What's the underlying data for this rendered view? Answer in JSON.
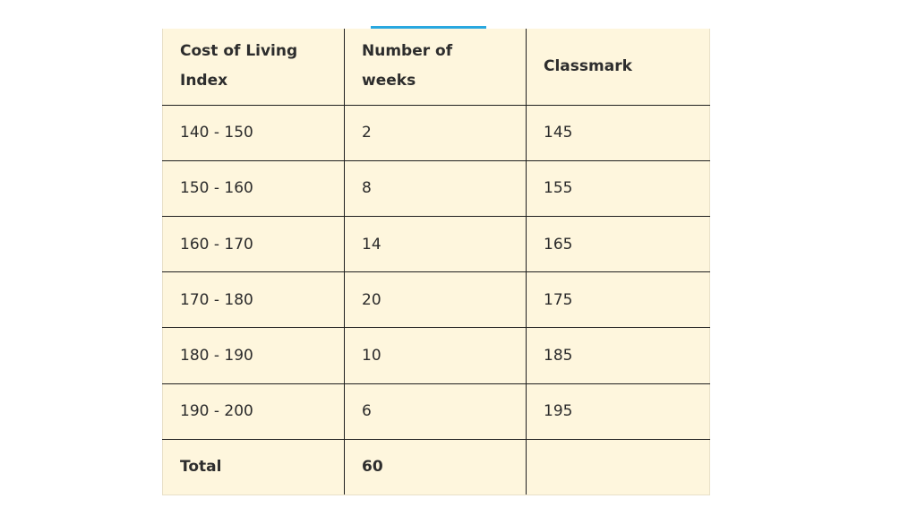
{
  "table": {
    "headers": {
      "col1_line1": "Cost of Living",
      "col1_line2": "Index",
      "col2_line1": "Number of",
      "col2_line2": "weeks",
      "col3": "Classmark"
    },
    "rows": [
      {
        "range": "140 - 150",
        "weeks": "2",
        "classmark": "145"
      },
      {
        "range": "150 - 160",
        "weeks": "8",
        "classmark": "155"
      },
      {
        "range": "160 - 170",
        "weeks": "14",
        "classmark": "165"
      },
      {
        "range": "170 - 180",
        "weeks": "20",
        "classmark": "175"
      },
      {
        "range": "180 - 190",
        "weeks": "10",
        "classmark": "185"
      },
      {
        "range": "190 - 200",
        "weeks": "6",
        "classmark": "195"
      }
    ],
    "total": {
      "label": "Total",
      "weeks": "60",
      "classmark": ""
    }
  },
  "colors": {
    "table_background": "#fef6dd",
    "accent": "#29a8e0",
    "border": "#1f1f1f"
  }
}
